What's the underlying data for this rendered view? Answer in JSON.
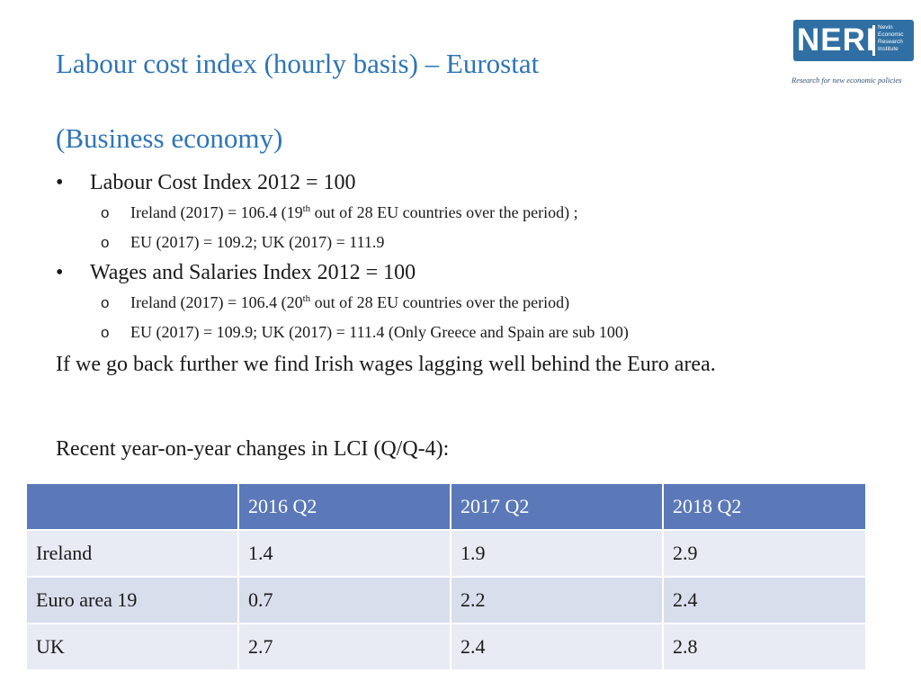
{
  "slide": {
    "title": "Labour cost index (hourly basis) – Eurostat",
    "subtitle": "(Business economy)"
  },
  "logo": {
    "word": "NERI",
    "line1": "Nevin",
    "line2": "Economic",
    "line3": "Research",
    "line4": "Institute",
    "tagline": "Research for new economic policies",
    "color": "#2f6fa3"
  },
  "bullets": {
    "lci_heading": "Labour Cost Index 2012 = 100",
    "lci_ireland_a": "Ireland (2017) = 106.4 (19",
    "lci_ireland_sup": "th",
    "lci_ireland_b": " out of 28 EU countries over the period) ;",
    "lci_eu_uk": "EU (2017) = 109.2; UK (2017) = 111.9",
    "wsi_heading": "Wages and Salaries Index 2012 = 100",
    "wsi_ireland_a": "Ireland (2017) = 106.4 (20",
    "wsi_ireland_sup": "th",
    "wsi_ireland_b": " out of 28 EU countries over the period)",
    "wsi_eu_uk": "EU (2017) = 109.9; UK (2017) = 111.4 (Only Greece and Spain are sub 100)"
  },
  "paragraph": "If we go back further we find Irish wages lagging well behind the Euro area.",
  "recent_heading": "Recent year-on-year changes in LCI (Q/Q-4):",
  "table": {
    "headers": [
      "",
      "2016 Q2",
      "2017 Q2",
      "2018 Q2"
    ],
    "rows": [
      [
        "Ireland",
        "1.4",
        "1.9",
        "2.9"
      ],
      [
        "Euro area 19",
        "0.7",
        "2.2",
        "2.4"
      ],
      [
        "UK",
        "2.7",
        "2.4",
        "2.8"
      ]
    ]
  },
  "colors": {
    "title": "#2e75b6",
    "table_header": "#5b79b8",
    "row_light": "#e8ebf4",
    "row_dark": "#d9deec"
  }
}
